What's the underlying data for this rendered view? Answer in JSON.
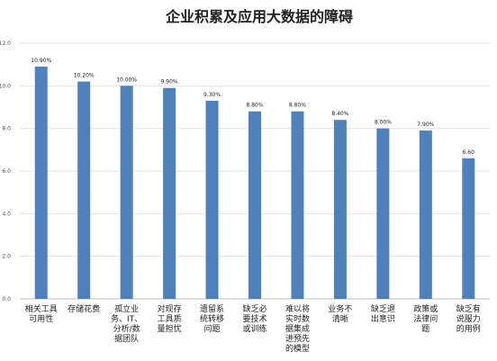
{
  "chart_data": {
    "type": "bar",
    "title": "企业积累及应用大数据的障碍",
    "xlabel": "",
    "ylabel": "",
    "ylim": [
      0,
      12
    ],
    "yticks": [
      "0.0",
      "2.0",
      "4.0",
      "6.0",
      "8.0",
      "10.0",
      "12.0"
    ],
    "grid": true,
    "bar_color": "#4F81BD",
    "categories": [
      [
        "相关工具",
        "可用性"
      ],
      [
        "存储花费"
      ],
      [
        "孤立业",
        "务、IT、",
        "分析/数",
        "据团队"
      ],
      [
        "对现存",
        "工具质",
        "量担忧"
      ],
      [
        "遗留系",
        "统转移",
        "问题"
      ],
      [
        "缺乏必",
        "要技术",
        "或训练"
      ],
      [
        "难以将",
        "实时数",
        "据集成",
        "进预先",
        "的模型"
      ],
      [
        "业务不",
        "清晰"
      ],
      [
        "缺乏退",
        "出意识"
      ],
      [
        "政策或",
        "法律问",
        "题"
      ],
      [
        "缺乏有",
        "说服力",
        "的用例"
      ]
    ],
    "values": [
      10.9,
      10.2,
      10.0,
      9.9,
      9.3,
      8.8,
      8.8,
      8.4,
      8.0,
      7.9,
      6.6
    ],
    "data_labels": [
      "10.90%",
      "10.20%",
      "10.00%",
      "9.90%",
      "9.30%",
      "8.80%",
      "8.80%",
      "8.40%",
      "8.00%",
      "7.90%",
      "6.60"
    ]
  }
}
